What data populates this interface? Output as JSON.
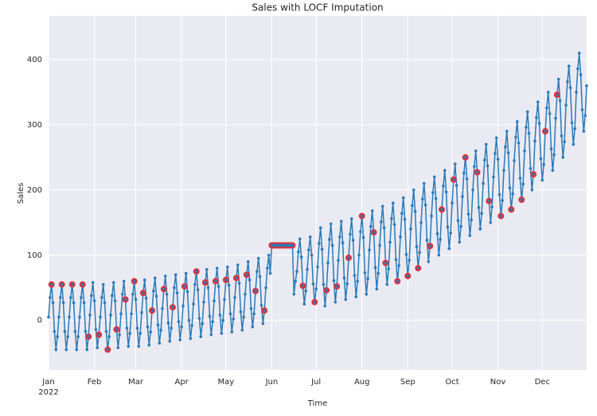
{
  "chart_data": {
    "type": "line",
    "title": "Sales with LOCF Imputation",
    "xlabel": "Time",
    "ylabel": "Sales",
    "xlim": [
      0,
      364
    ],
    "ylim": [
      -76,
      467
    ],
    "yticks": [
      0,
      100,
      200,
      300,
      400
    ],
    "xticks": [
      {
        "value": 0,
        "label": "Jan"
      },
      {
        "value": 31,
        "label": "Feb"
      },
      {
        "value": 59,
        "label": "Mar"
      },
      {
        "value": 90,
        "label": "Apr"
      },
      {
        "value": 120,
        "label": "May"
      },
      {
        "value": 151,
        "label": "Jun"
      },
      {
        "value": 181,
        "label": "Jul"
      },
      {
        "value": 212,
        "label": "Aug"
      },
      {
        "value": 243,
        "label": "Sep"
      },
      {
        "value": 273,
        "label": "Oct"
      },
      {
        "value": 304,
        "label": "Nov"
      },
      {
        "value": 334,
        "label": "Dec"
      }
    ],
    "xtick_sublabel": "2022",
    "grid": true,
    "series": [
      {
        "color": "#2a7ab8",
        "values": [
          5,
          35,
          55,
          27,
          -17,
          -45,
          -25,
          5,
          35,
          55,
          27,
          -17,
          -45,
          -25,
          5,
          35,
          55,
          27,
          -17,
          -45,
          -25,
          5,
          35,
          55,
          27,
          -17,
          -45,
          -25,
          8,
          38,
          58,
          30,
          -14,
          -42,
          -22,
          5,
          35,
          55,
          27,
          -17,
          -45,
          -25,
          8,
          38,
          58,
          30,
          -14,
          -42,
          -22,
          10,
          40,
          60,
          32,
          -12,
          -40,
          -20,
          10,
          40,
          60,
          32,
          -12,
          -40,
          -20,
          12,
          42,
          62,
          34,
          -10,
          -38,
          -18,
          15,
          45,
          65,
          37,
          -7,
          -35,
          -15,
          18,
          48,
          68,
          40,
          -4,
          -32,
          -12,
          20,
          50,
          70,
          42,
          -2,
          -30,
          -10,
          22,
          52,
          72,
          44,
          0,
          -28,
          -8,
          25,
          55,
          75,
          47,
          3,
          -25,
          -5,
          28,
          58,
          78,
          50,
          6,
          -22,
          -2,
          30,
          60,
          80,
          52,
          8,
          -20,
          0,
          32,
          62,
          82,
          54,
          10,
          -18,
          2,
          35,
          65,
          85,
          57,
          13,
          -15,
          5,
          40,
          70,
          90,
          62,
          18,
          -10,
          10,
          45,
          75,
          95,
          67,
          23,
          -5,
          15,
          50,
          80,
          100,
          72,
          115,
          115,
          115,
          115,
          115,
          115,
          115,
          115,
          115,
          115,
          115,
          115,
          115,
          115,
          115,
          40,
          60,
          75,
          105,
          125,
          97,
          53,
          25,
          45,
          78,
          108,
          128,
          100,
          56,
          28,
          48,
          82,
          118,
          142,
          109,
          55,
          22,
          46,
          88,
          124,
          148,
          115,
          61,
          28,
          52,
          92,
          128,
          152,
          119,
          65,
          32,
          56,
          96,
          132,
          156,
          123,
          69,
          36,
          60,
          100,
          136,
          160,
          127,
          73,
          40,
          64,
          108,
          144,
          168,
          135,
          81,
          48,
          72,
          115,
          151,
          175,
          142,
          88,
          55,
          79,
          120,
          156,
          180,
          147,
          93,
          60,
          84,
          128,
          164,
          188,
          155,
          101,
          68,
          92,
          140,
          176,
          200,
          167,
          113,
          80,
          104,
          150,
          186,
          210,
          177,
          123,
          90,
          114,
          160,
          196,
          220,
          187,
          133,
          100,
          124,
          170,
          206,
          230,
          197,
          143,
          110,
          134,
          180,
          216,
          240,
          207,
          153,
          120,
          144,
          190,
          226,
          250,
          217,
          163,
          130,
          154,
          200,
          236,
          260,
          227,
          173,
          140,
          164,
          210,
          246,
          270,
          237,
          183,
          150,
          174,
          220,
          256,
          280,
          247,
          193,
          160,
          184,
          230,
          266,
          290,
          257,
          203,
          170,
          194,
          245,
          281,
          305,
          272,
          218,
          185,
          209,
          260,
          296,
          320,
          287,
          233,
          200,
          224,
          275,
          311,
          335,
          302,
          248,
          215,
          239,
          290,
          326,
          350,
          317,
          263,
          230,
          254,
          310,
          346,
          370,
          337,
          283,
          250,
          274,
          330,
          366,
          390,
          357,
          303,
          270,
          294,
          350,
          386,
          410,
          377,
          323,
          290,
          314,
          360
        ]
      }
    ],
    "imputed_color": "#e0303a",
    "imputed": [
      2,
      9,
      16,
      23,
      27,
      34,
      40,
      46,
      52,
      58,
      64,
      70,
      78,
      84,
      92,
      100,
      106,
      113,
      120,
      127,
      134,
      140,
      146,
      151,
      152,
      153,
      154,
      155,
      156,
      157,
      158,
      159,
      160,
      161,
      162,
      163,
      164,
      165,
      172,
      180,
      188,
      195,
      203,
      212,
      220,
      228,
      236,
      243,
      250,
      258,
      266,
      274,
      282,
      290,
      298,
      306,
      313,
      320,
      328,
      336,
      344
    ]
  }
}
